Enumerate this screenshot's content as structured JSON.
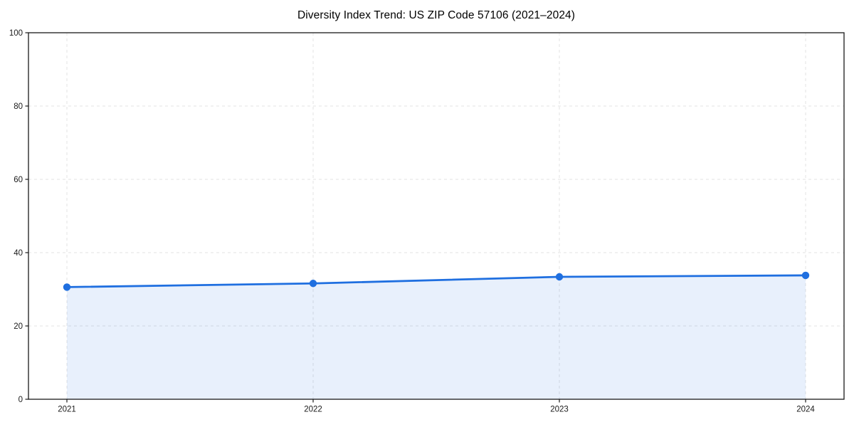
{
  "chart_data": {
    "type": "line",
    "title": "Diversity Index Trend: US ZIP Code 57106 (2021–2024)",
    "x": [
      "2021",
      "2022",
      "2023",
      "2024"
    ],
    "series": [
      {
        "name": "Diversity Index",
        "values": [
          30.6,
          31.6,
          33.4,
          33.8
        ]
      }
    ],
    "xlabel": "",
    "ylabel": "",
    "ylim": [
      0,
      100
    ],
    "yticks": [
      0,
      20,
      40,
      60,
      80,
      100
    ],
    "grid": true,
    "grid_style": "dashed",
    "legend": false,
    "area_fill": true,
    "marker": "circle",
    "colors": {
      "line": "#1f6fe0",
      "marker": "#1f6fe0",
      "area": "#1f6fe0",
      "area_opacity": 0.1,
      "grid": "#e3e3e3",
      "spine": "#1a1a1a",
      "tick_label": "#1a1a1a",
      "title": "#000000",
      "background": "#ffffff"
    }
  }
}
